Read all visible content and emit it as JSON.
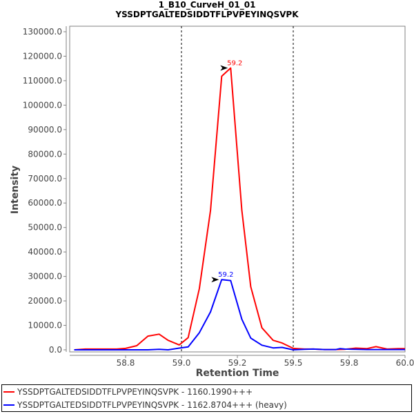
{
  "chart_data": {
    "type": "line",
    "title": "1_B10_CurveH_01_01",
    "subtitle": "YSSDPTGALTEDSIDDTFLPVPEYINQSVPK",
    "xlabel": "Retention Time",
    "ylabel": "Intensity",
    "xlim": [
      58.5,
      60.0
    ],
    "ylim": [
      0,
      130000
    ],
    "x_ticks": [
      {
        "value": 58.75,
        "label": "58.8"
      },
      {
        "value": 59.0,
        "label": "59.0"
      },
      {
        "value": 59.25,
        "label": "59.2"
      },
      {
        "value": 59.5,
        "label": "59.5"
      },
      {
        "value": 59.75,
        "label": "59.8"
      },
      {
        "value": 60.0,
        "label": "60.0"
      }
    ],
    "y_ticks": [
      {
        "value": 0,
        "label": "0.0"
      },
      {
        "value": 10000,
        "label": "10000.0"
      },
      {
        "value": 20000,
        "label": "20000.0"
      },
      {
        "value": 30000,
        "label": "30000.0"
      },
      {
        "value": 40000,
        "label": "40000.0"
      },
      {
        "value": 50000,
        "label": "50000.0"
      },
      {
        "value": 60000,
        "label": "60000.0"
      },
      {
        "value": 70000,
        "label": "70000.0"
      },
      {
        "value": 80000,
        "label": "80000.0"
      },
      {
        "value": 90000,
        "label": "90000.0"
      },
      {
        "value": 100000,
        "label": "100000.0"
      },
      {
        "value": 110000,
        "label": "110000.0"
      },
      {
        "value": 120000,
        "label": "120000.0"
      },
      {
        "value": 130000,
        "label": "130000.0"
      }
    ],
    "boundaries": [
      59.0,
      59.5
    ],
    "grid": false,
    "legend_position": "bottom",
    "series": [
      {
        "name": "YSSDPTGALTEDSIDDTFLPVPEYINQSVPK - 1160.1990+++",
        "color": "#ff0000",
        "peak_label": "59.2",
        "peak": [
          59.22,
          115200
        ],
        "x": [
          58.52,
          58.57,
          58.61,
          58.66,
          58.71,
          58.75,
          58.8,
          58.85,
          58.9,
          58.94,
          58.99,
          59.03,
          59.08,
          59.13,
          59.18,
          59.22,
          59.27,
          59.31,
          59.36,
          59.41,
          59.45,
          59.5,
          59.55,
          59.59,
          59.64,
          59.69,
          59.73,
          59.78,
          59.83,
          59.87,
          59.92,
          59.97,
          60.0
        ],
        "y": [
          0,
          300,
          300,
          300,
          300,
          600,
          1700,
          5600,
          6400,
          3900,
          2000,
          5000,
          25000,
          57000,
          111800,
          115200,
          57000,
          25800,
          9000,
          3900,
          2800,
          600,
          300,
          300,
          100,
          100,
          200,
          700,
          500,
          1300,
          300,
          500,
          500
        ]
      },
      {
        "name": "YSSDPTGALTEDSIDDTFLPVPEYINQSVPK - 1162.8704+++ (heavy)",
        "color": "#0000ff",
        "peak_label": "59.2",
        "peak": [
          59.18,
          28700
        ],
        "x": [
          58.52,
          58.57,
          58.61,
          58.66,
          58.71,
          58.75,
          58.8,
          58.85,
          58.9,
          58.94,
          58.99,
          59.03,
          59.08,
          59.13,
          59.18,
          59.22,
          59.27,
          59.31,
          59.36,
          59.41,
          59.45,
          59.5,
          59.55,
          59.59,
          59.64,
          59.69,
          59.71,
          59.73,
          59.78,
          59.83,
          59.87,
          59.92,
          59.97,
          60.0
        ],
        "y": [
          0,
          0,
          0,
          0,
          0,
          0,
          0,
          0,
          200,
          0,
          700,
          1200,
          7000,
          15500,
          28700,
          28300,
          12500,
          4800,
          1900,
          800,
          1000,
          0,
          200,
          300,
          100,
          100,
          500,
          300,
          200,
          100,
          100,
          100,
          100,
          100
        ]
      }
    ]
  }
}
